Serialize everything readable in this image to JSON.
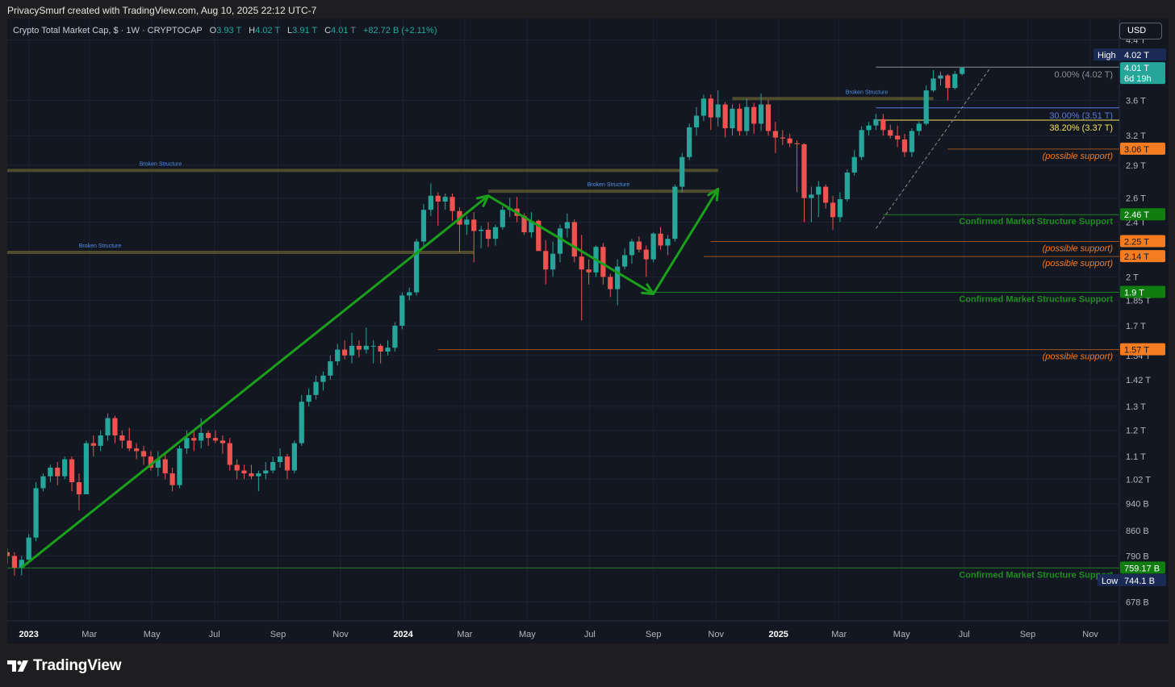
{
  "header": {
    "attribution": "PrivacySmurf created with TradingView.com, Aug 10, 2025 22:12 UTC-7"
  },
  "legend": {
    "symbol": "Crypto Total Market Cap, $ · 1W · CRYPTOCAP",
    "open_label": "O",
    "open": "3.93 T",
    "high_label": "H",
    "high": "4.02 T",
    "low_label": "L",
    "low": "3.91 T",
    "close_label": "C",
    "close": "4.01 T",
    "change": "+82.72 B (+2.11%)"
  },
  "currency_button": "USD",
  "footer": {
    "brand": "TradingView",
    "logo_icon": "tradingview-logo-icon"
  },
  "colors": {
    "background": "#131722",
    "up": "#26a69a",
    "down": "#ef5350",
    "support_green": "#1e8c1e",
    "support_orange": "#f57c20",
    "trend_arrow": "#1aa01a",
    "fib_blue": "#5b7bd6",
    "fib_yellow": "#f2e15c"
  },
  "chart_data": {
    "type": "candlestick",
    "scale": "log",
    "interval": "1W",
    "ylim": [
      640000000000.0,
      4600000000000.0
    ],
    "xlim": [
      "2022-12-11",
      "2025-11-23"
    ],
    "y_ticks": [
      "4.4 T",
      "3.6 T",
      "3.2 T",
      "2.9 T",
      "2.6 T",
      "2.4 T",
      "2 T",
      "1.85 T",
      "1.7 T",
      "1.54 T",
      "1.42 T",
      "1.3 T",
      "1.2 T",
      "1.1 T",
      "1.02 T",
      "940 B",
      "860 B",
      "790 B",
      "678 B"
    ],
    "x_ticks": [
      {
        "label": "2023",
        "date": "2023-01-01",
        "bold": true
      },
      {
        "label": "Mar",
        "date": "2023-03-01"
      },
      {
        "label": "May",
        "date": "2023-05-01"
      },
      {
        "label": "Jul",
        "date": "2023-07-01"
      },
      {
        "label": "Sep",
        "date": "2023-09-01"
      },
      {
        "label": "Nov",
        "date": "2023-11-01"
      },
      {
        "label": "2024",
        "date": "2024-01-01",
        "bold": true
      },
      {
        "label": "Mar",
        "date": "2024-03-01"
      },
      {
        "label": "May",
        "date": "2024-05-01"
      },
      {
        "label": "Jul",
        "date": "2024-07-01"
      },
      {
        "label": "Sep",
        "date": "2024-09-01"
      },
      {
        "label": "Nov",
        "date": "2024-11-01"
      },
      {
        "label": "2025",
        "date": "2025-01-01",
        "bold": true
      },
      {
        "label": "Mar",
        "date": "2025-03-01"
      },
      {
        "label": "May",
        "date": "2025-05-01"
      },
      {
        "label": "Jul",
        "date": "2025-07-01"
      },
      {
        "label": "Sep",
        "date": "2025-09-01"
      },
      {
        "label": "Nov",
        "date": "2025-11-01"
      }
    ],
    "candles_start": "2022-12-11",
    "candles_ohlc": [
      [
        0.8,
        0.81,
        0.77,
        0.79
      ],
      [
        0.79,
        0.8,
        0.74,
        0.76
      ],
      [
        0.76,
        0.79,
        0.74,
        0.78
      ],
      [
        0.78,
        0.85,
        0.78,
        0.84
      ],
      [
        0.84,
        1.01,
        0.83,
        0.99
      ],
      [
        0.99,
        1.04,
        0.98,
        1.03
      ],
      [
        1.03,
        1.07,
        1.01,
        1.06
      ],
      [
        1.06,
        1.08,
        1.0,
        1.03
      ],
      [
        1.03,
        1.1,
        1.02,
        1.09
      ],
      [
        1.09,
        1.1,
        0.98,
        1.01
      ],
      [
        1.01,
        1.04,
        0.92,
        0.97
      ],
      [
        0.97,
        1.16,
        0.97,
        1.15
      ],
      [
        1.15,
        1.18,
        1.1,
        1.14
      ],
      [
        1.14,
        1.2,
        1.12,
        1.18
      ],
      [
        1.18,
        1.27,
        1.16,
        1.25
      ],
      [
        1.25,
        1.26,
        1.15,
        1.18
      ],
      [
        1.18,
        1.2,
        1.13,
        1.16
      ],
      [
        1.16,
        1.21,
        1.12,
        1.13
      ],
      [
        1.13,
        1.15,
        1.09,
        1.12
      ],
      [
        1.12,
        1.14,
        1.07,
        1.1
      ],
      [
        1.1,
        1.12,
        1.05,
        1.06
      ],
      [
        1.06,
        1.12,
        1.03,
        1.09
      ],
      [
        1.09,
        1.11,
        1.02,
        1.04
      ],
      [
        1.04,
        1.06,
        0.98,
        1.0
      ],
      [
        1.0,
        1.14,
        0.99,
        1.13
      ],
      [
        1.13,
        1.2,
        1.11,
        1.17
      ],
      [
        1.17,
        1.2,
        1.12,
        1.16
      ],
      [
        1.16,
        1.25,
        1.13,
        1.19
      ],
      [
        1.19,
        1.2,
        1.14,
        1.17
      ],
      [
        1.17,
        1.2,
        1.15,
        1.16
      ],
      [
        1.16,
        1.18,
        1.11,
        1.15
      ],
      [
        1.15,
        1.17,
        1.05,
        1.07
      ],
      [
        1.07,
        1.09,
        1.02,
        1.05
      ],
      [
        1.05,
        1.07,
        1.02,
        1.04
      ],
      [
        1.04,
        1.07,
        1.02,
        1.03
      ],
      [
        1.03,
        1.05,
        0.98,
        1.04
      ],
      [
        1.04,
        1.08,
        1.02,
        1.05
      ],
      [
        1.05,
        1.1,
        1.04,
        1.08
      ],
      [
        1.08,
        1.13,
        1.06,
        1.1
      ],
      [
        1.1,
        1.11,
        1.02,
        1.05
      ],
      [
        1.05,
        1.16,
        1.04,
        1.15
      ],
      [
        1.15,
        1.35,
        1.14,
        1.32
      ],
      [
        1.32,
        1.38,
        1.3,
        1.35
      ],
      [
        1.35,
        1.44,
        1.33,
        1.41
      ],
      [
        1.41,
        1.46,
        1.37,
        1.44
      ],
      [
        1.44,
        1.54,
        1.42,
        1.51
      ],
      [
        1.51,
        1.6,
        1.49,
        1.57
      ],
      [
        1.57,
        1.62,
        1.52,
        1.54
      ],
      [
        1.54,
        1.66,
        1.5,
        1.59
      ],
      [
        1.59,
        1.62,
        1.53,
        1.57
      ],
      [
        1.57,
        1.69,
        1.55,
        1.59
      ],
      [
        1.59,
        1.62,
        1.5,
        1.59
      ],
      [
        1.59,
        1.6,
        1.5,
        1.56
      ],
      [
        1.56,
        1.62,
        1.54,
        1.58
      ],
      [
        1.58,
        1.72,
        1.56,
        1.7
      ],
      [
        1.7,
        1.9,
        1.68,
        1.88
      ],
      [
        1.88,
        1.93,
        1.85,
        1.9
      ],
      [
        1.9,
        2.27,
        1.88,
        2.25
      ],
      [
        2.25,
        2.55,
        2.2,
        2.5
      ],
      [
        2.5,
        2.73,
        2.45,
        2.62
      ],
      [
        2.62,
        2.65,
        2.37,
        2.57
      ],
      [
        2.57,
        2.64,
        2.5,
        2.61
      ],
      [
        2.61,
        2.64,
        2.41,
        2.49
      ],
      [
        2.49,
        2.52,
        2.17,
        2.38
      ],
      [
        2.38,
        2.45,
        2.3,
        2.42
      ],
      [
        2.42,
        2.48,
        2.1,
        2.33
      ],
      [
        2.33,
        2.37,
        2.2,
        2.34
      ],
      [
        2.34,
        2.4,
        2.21,
        2.27
      ],
      [
        2.27,
        2.38,
        2.22,
        2.36
      ],
      [
        2.36,
        2.53,
        2.34,
        2.5
      ],
      [
        2.5,
        2.6,
        2.44,
        2.51
      ],
      [
        2.51,
        2.61,
        2.4,
        2.45
      ],
      [
        2.45,
        2.47,
        2.3,
        2.32
      ],
      [
        2.32,
        2.48,
        2.28,
        2.41
      ],
      [
        2.41,
        2.42,
        2.19,
        2.18
      ],
      [
        2.18,
        2.26,
        1.95,
        2.05
      ],
      [
        2.05,
        2.25,
        2.0,
        2.16
      ],
      [
        2.16,
        2.38,
        2.1,
        2.35
      ],
      [
        2.35,
        2.47,
        2.28,
        2.4
      ],
      [
        2.4,
        2.42,
        2.1,
        2.14
      ],
      [
        2.14,
        2.3,
        1.73,
        2.05
      ],
      [
        2.05,
        2.12,
        1.95,
        2.03
      ],
      [
        2.03,
        2.22,
        2.0,
        2.21
      ],
      [
        2.21,
        2.24,
        1.95,
        2.0
      ],
      [
        2.0,
        2.02,
        1.87,
        1.92
      ],
      [
        1.92,
        2.12,
        1.82,
        2.07
      ],
      [
        2.07,
        2.2,
        2.05,
        2.15
      ],
      [
        2.15,
        2.27,
        2.09,
        2.25
      ],
      [
        2.25,
        2.29,
        2.17,
        2.19
      ],
      [
        2.19,
        2.22,
        2.0,
        2.12
      ],
      [
        2.12,
        2.32,
        2.1,
        2.31
      ],
      [
        2.31,
        2.36,
        2.19,
        2.22
      ],
      [
        2.22,
        2.3,
        2.15,
        2.27
      ],
      [
        2.27,
        2.72,
        2.25,
        2.7
      ],
      [
        2.7,
        3.02,
        2.65,
        2.98
      ],
      [
        2.98,
        3.33,
        2.95,
        3.29
      ],
      [
        3.29,
        3.52,
        3.2,
        3.42
      ],
      [
        3.42,
        3.67,
        3.36,
        3.62
      ],
      [
        3.62,
        3.67,
        3.26,
        3.4
      ],
      [
        3.4,
        3.72,
        3.3,
        3.55
      ],
      [
        3.55,
        3.58,
        3.18,
        3.28
      ],
      [
        3.28,
        3.55,
        3.2,
        3.5
      ],
      [
        3.5,
        3.56,
        3.2,
        3.25
      ],
      [
        3.25,
        3.62,
        3.2,
        3.52
      ],
      [
        3.52,
        3.57,
        3.22,
        3.33
      ],
      [
        3.33,
        3.68,
        3.25,
        3.55
      ],
      [
        3.55,
        3.6,
        3.2,
        3.25
      ],
      [
        3.25,
        3.35,
        3.02,
        3.18
      ],
      [
        3.18,
        3.26,
        3.1,
        3.17
      ],
      [
        3.17,
        3.22,
        3.08,
        3.12
      ],
      [
        3.12,
        3.15,
        2.65,
        3.11
      ],
      [
        3.11,
        3.12,
        2.4,
        2.6
      ],
      [
        2.6,
        2.7,
        2.4,
        2.63
      ],
      [
        2.63,
        2.75,
        2.44,
        2.7
      ],
      [
        2.7,
        2.72,
        2.51,
        2.56
      ],
      [
        2.56,
        2.62,
        2.34,
        2.44
      ],
      [
        2.44,
        2.65,
        2.4,
        2.59
      ],
      [
        2.59,
        2.86,
        2.57,
        2.83
      ],
      [
        2.83,
        3.05,
        2.8,
        2.98
      ],
      [
        2.98,
        3.3,
        2.95,
        3.26
      ],
      [
        3.26,
        3.35,
        3.2,
        3.31
      ],
      [
        3.31,
        3.44,
        3.26,
        3.38
      ],
      [
        3.38,
        3.44,
        3.2,
        3.26
      ],
      [
        3.26,
        3.32,
        3.17,
        3.2
      ],
      [
        3.2,
        3.31,
        3.08,
        3.16
      ],
      [
        3.16,
        3.22,
        2.98,
        3.03
      ],
      [
        3.03,
        3.28,
        2.98,
        3.25
      ],
      [
        3.25,
        3.36,
        3.2,
        3.33
      ],
      [
        3.33,
        3.78,
        3.31,
        3.72
      ],
      [
        3.72,
        3.98,
        3.7,
        3.87
      ],
      [
        3.87,
        3.96,
        3.78,
        3.91
      ],
      [
        3.91,
        3.93,
        3.6,
        3.75
      ],
      [
        3.75,
        3.97,
        3.73,
        3.93
      ],
      [
        3.93,
        4.02,
        3.91,
        4.01
      ]
    ],
    "levels": [
      {
        "value": 2460000000000.0,
        "tag": "2.46 T",
        "kind": "green",
        "label": "Confirmed Market Structure Support"
      },
      {
        "value": 1900000000000.0,
        "tag": "1.9 T",
        "kind": "green",
        "label": "Confirmed Market Structure Support"
      },
      {
        "value": 759170000000.0,
        "tag": "759.17 B",
        "kind": "green",
        "label": "Confirmed Market Structure Support"
      },
      {
        "value": 3060000000000.0,
        "tag": "3.06 T",
        "kind": "orange",
        "label": "(possible support)"
      },
      {
        "value": 2250000000000.0,
        "tag": "2.25 T",
        "kind": "orange",
        "label": "(possible support)"
      },
      {
        "value": 2140000000000.0,
        "tag": "2.14 T",
        "kind": "orange",
        "label": "(possible support)"
      },
      {
        "value": 1570000000000.0,
        "tag": "1.57 T",
        "kind": "orange",
        "label": "(possible support)"
      }
    ],
    "broken_structure": [
      {
        "label": "Broken Structure",
        "value": 2850000000000.0
      },
      {
        "label": "Broken Structure",
        "value": 2660000000000.0
      },
      {
        "label": "Broken Structure",
        "value": 2170000000000.0
      },
      {
        "label": "Broken Structure",
        "value": 3620000000000.0
      }
    ],
    "fib_levels": [
      {
        "label": "0.00% (4.02 T)",
        "value": 4020000000000.0
      },
      {
        "label": "30.00% (3.51 T)",
        "value": 3510000000000.0
      },
      {
        "label": "38.20% (3.37 T)",
        "value": 3370000000000.0
      }
    ],
    "high_tag": {
      "label": "High",
      "value": "4.02 T"
    },
    "low_tag": {
      "label": "Low",
      "value": "744.1 B"
    },
    "last_price": {
      "value": "4.01 T",
      "countdown": "6d 19h"
    },
    "trend_points": [
      {
        "date": "2022-12-25",
        "value": 760000000000.0
      },
      {
        "date": "2024-03-24",
        "value": 2620000000000.0
      },
      {
        "date": "2024-09-01",
        "value": 1890000000000.0
      },
      {
        "date": "2024-11-03",
        "value": 2680000000000.0
      }
    ]
  }
}
